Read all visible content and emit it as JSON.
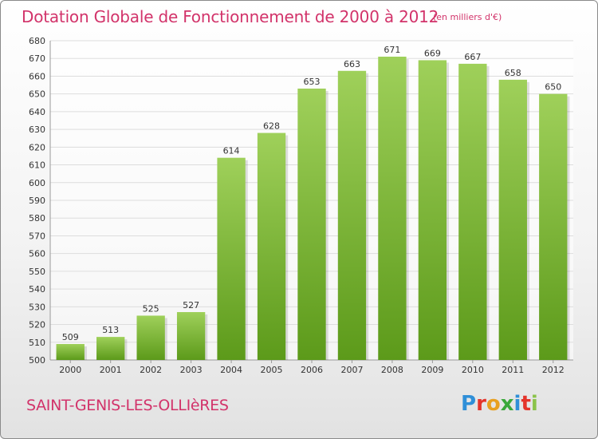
{
  "header": {
    "title": "Dotation Globale de Fonctionnement de 2000 à 2012",
    "unit": "(en milliers d'€)"
  },
  "footer": {
    "commune": "SAINT-GENIS-LES-OLLIèRES",
    "brand_letters": [
      "P",
      "r",
      "o",
      "x",
      "i",
      "t",
      "i"
    ],
    "brand_colors": [
      "#2f8fd8",
      "#e4342b",
      "#e8a020",
      "#3aa83a",
      "#2f8fd8",
      "#e4342b",
      "#8bc34a"
    ]
  },
  "colors": {
    "bar_top": "#9fd05a",
    "bar_bottom": "#5c9a1a",
    "title": "#d2336a",
    "grid": "#dddddd"
  },
  "chart_data": {
    "type": "bar",
    "categories": [
      "2000",
      "2001",
      "2002",
      "2003",
      "2004",
      "2005",
      "2006",
      "2007",
      "2008",
      "2009",
      "2010",
      "2011",
      "2012"
    ],
    "values": [
      509,
      513,
      525,
      527,
      614,
      628,
      653,
      663,
      671,
      669,
      667,
      658,
      650
    ],
    "title": "Dotation Globale de Fonctionnement de 2000 à 2012",
    "ylim": [
      500,
      680
    ],
    "yticks": [
      500,
      510,
      520,
      530,
      540,
      550,
      560,
      570,
      580,
      590,
      600,
      610,
      620,
      630,
      640,
      650,
      660,
      670,
      680
    ],
    "grid": true,
    "data_labels": true
  }
}
